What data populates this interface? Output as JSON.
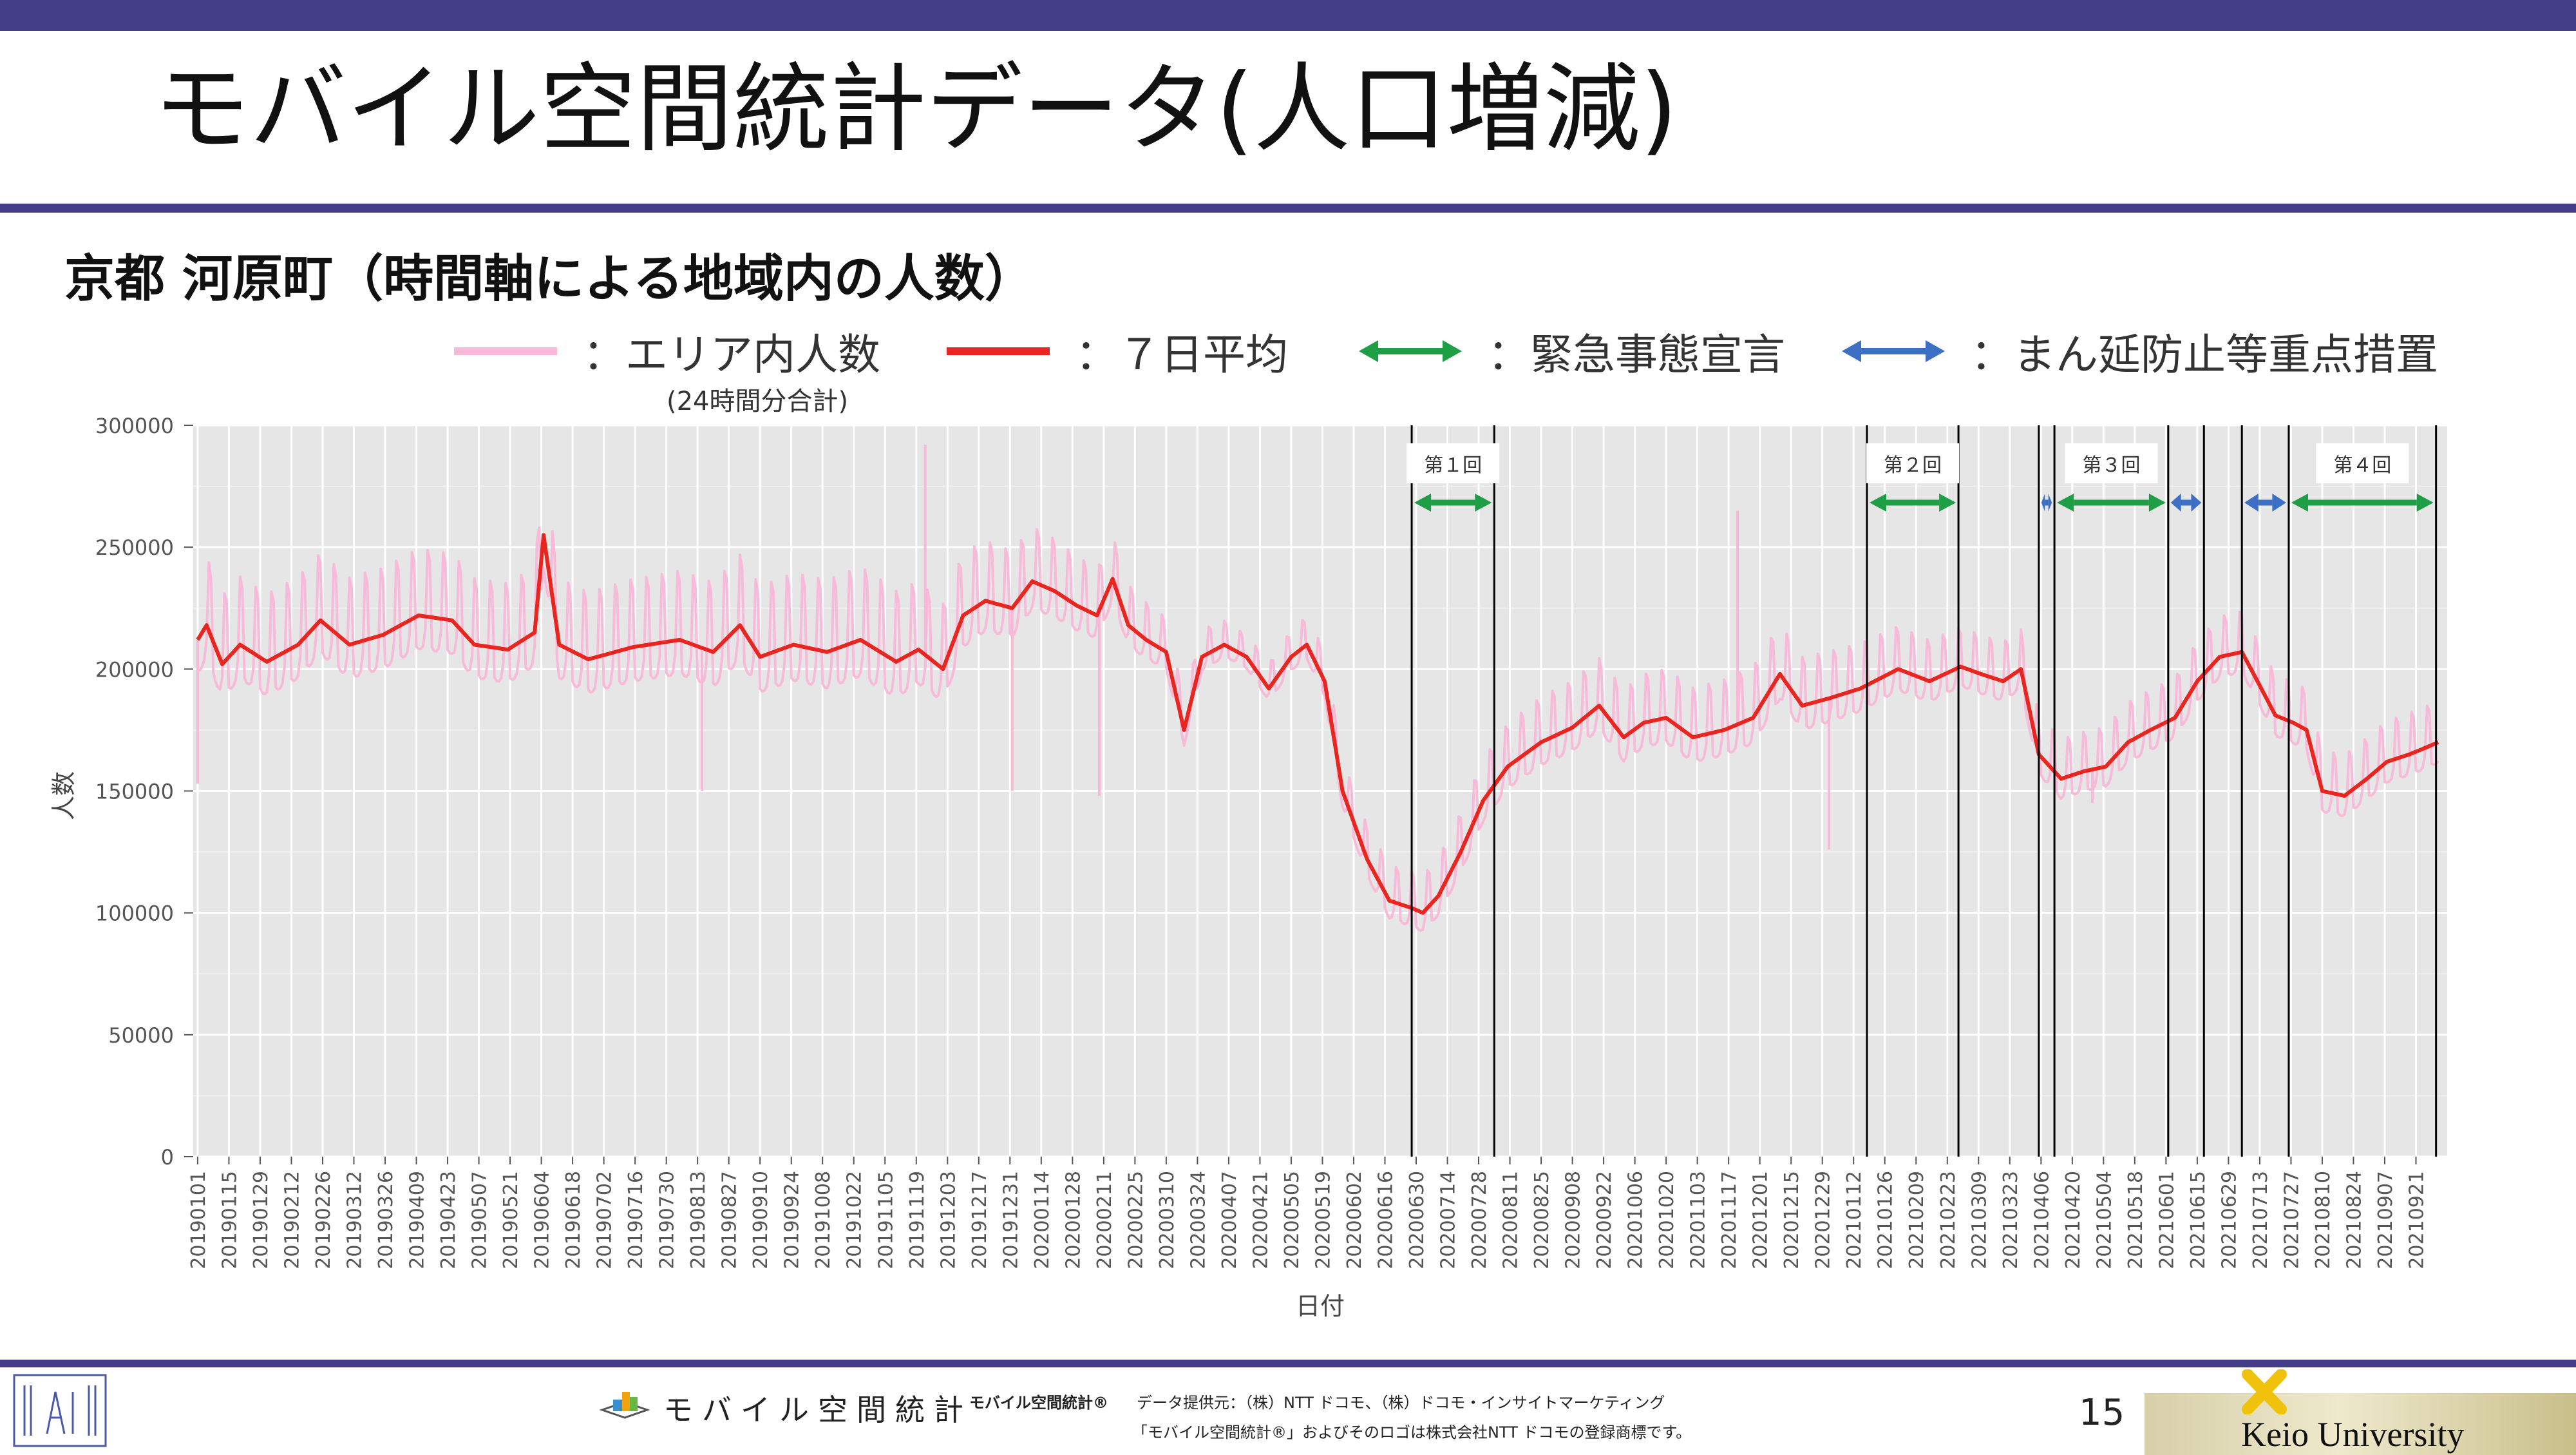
{
  "slide": {
    "title": "モバイル空間統計データ(人口増減)",
    "subtitle": "京都 河原町（時間軸による地域内の人数）",
    "page_number": "15"
  },
  "legend": [
    {
      "label": "：エリア内人数",
      "color": "#f8b8d8",
      "icon": "line"
    },
    {
      "label": "：７日平均",
      "color": "#e8251f",
      "icon": "line"
    },
    {
      "label": "：緊急事態宣言",
      "color": "#1e9e45",
      "icon": "double-arrow"
    },
    {
      "label": "：まん延防止等重点措置",
      "color": "#3d6fc4",
      "icon": "double-arrow"
    }
  ],
  "legend_note": "(24時間分合計)",
  "footer": {
    "brand_text": "モバイル空間統計",
    "small_brand": "モバイル空間統計®",
    "credit_line1": "データ提供元：（株）NTT ドコモ、（株）ドコモ・インサイトマーケティング",
    "credit_line2": "「モバイル空間統計®」およびそのロゴは株式会社NTT ドコモの登録商標です。",
    "university": "Keio University"
  },
  "colors": {
    "accent_bar": "#433d88",
    "panel_bg": "#e6e6e6",
    "raw_line": "#f8b8d8",
    "avg_line": "#e8251f",
    "emergency": "#1e9e45",
    "semi_emergency": "#3d6fc4"
  },
  "chart_data": {
    "type": "line",
    "title": "",
    "xlabel": "日付",
    "ylabel": "人数",
    "ylim": [
      0,
      300000
    ],
    "yticks": [
      0,
      50000,
      100000,
      150000,
      200000,
      250000,
      300000
    ],
    "ytick_labels": [
      "0",
      "50000",
      "100000",
      "150000",
      "200000",
      "250000",
      "300000"
    ],
    "xlim": [
      "2018-12-30",
      "2021-10-05"
    ],
    "xtick_labels": [
      "20190101",
      "20190115",
      "20190129",
      "20190212",
      "20190226",
      "20190312",
      "20190326",
      "20190409",
      "20190423",
      "20190507",
      "20190521",
      "20190604",
      "20190618",
      "20190702",
      "20190716",
      "20190730",
      "20190813",
      "20190827",
      "20190910",
      "20190924",
      "20191008",
      "20191022",
      "20191105",
      "20191119",
      "20191203",
      "20191217",
      "20191231",
      "20200114",
      "20200128",
      "20200211",
      "20200225",
      "20200310",
      "20200324",
      "20200407",
      "20200421",
      "20200505",
      "20200519",
      "20200602",
      "20200616",
      "20200630",
      "20200714",
      "20200728",
      "20200811",
      "20200825",
      "20200908",
      "20200922",
      "20201006",
      "20201020",
      "20201103",
      "20201117",
      "20201201",
      "20201215",
      "20201229",
      "20210112",
      "20210126",
      "20210209",
      "20210223",
      "20210309",
      "20210323",
      "20210406",
      "20210420",
      "20210504",
      "20210518",
      "20210601",
      "20210615",
      "20210629",
      "20210713",
      "20210727",
      "20210810",
      "20210824",
      "20210907",
      "20210921"
    ],
    "series": [
      {
        "name": "エリア内人数",
        "style": "daily",
        "weekly_amplitude": [
          [
            "2019-01-01",
            28000
          ],
          [
            "2019-06-01",
            27000
          ],
          [
            "2019-11-01",
            30000
          ],
          [
            "2020-02-01",
            20000
          ],
          [
            "2020-04-10",
            9000
          ],
          [
            "2020-06-10",
            14000
          ],
          [
            "2020-09-01",
            19000
          ],
          [
            "2020-12-01",
            21000
          ],
          [
            "2021-03-01",
            16000
          ],
          [
            "2021-09-30",
            17000
          ]
        ],
        "spikes": [
          [
            "2019-01-01",
            153000
          ],
          [
            "2019-11-23",
            292000
          ],
          [
            "2019-08-15",
            150000
          ],
          [
            "2020-01-01",
            150000
          ],
          [
            "2020-02-09",
            148000
          ],
          [
            "2021-01-01",
            126000
          ],
          [
            "2020-11-21",
            265000
          ],
          [
            "2021-04-29",
            145000
          ]
        ]
      },
      {
        "name": "７日平均",
        "style": "smooth",
        "points": [
          [
            "2019-01-01",
            212000
          ],
          [
            "2019-01-05",
            218000
          ],
          [
            "2019-01-12",
            202000
          ],
          [
            "2019-01-20",
            210000
          ],
          [
            "2019-02-01",
            203000
          ],
          [
            "2019-02-15",
            210000
          ],
          [
            "2019-02-25",
            220000
          ],
          [
            "2019-03-10",
            210000
          ],
          [
            "2019-03-25",
            214000
          ],
          [
            "2019-04-10",
            222000
          ],
          [
            "2019-04-25",
            220000
          ],
          [
            "2019-05-05",
            210000
          ],
          [
            "2019-05-20",
            208000
          ],
          [
            "2019-06-01",
            215000
          ],
          [
            "2019-06-05",
            255000
          ],
          [
            "2019-06-12",
            210000
          ],
          [
            "2019-06-25",
            204000
          ],
          [
            "2019-07-15",
            209000
          ],
          [
            "2019-08-05",
            212000
          ],
          [
            "2019-08-20",
            207000
          ],
          [
            "2019-09-01",
            218000
          ],
          [
            "2019-09-10",
            205000
          ],
          [
            "2019-09-25",
            210000
          ],
          [
            "2019-10-10",
            207000
          ],
          [
            "2019-10-25",
            212000
          ],
          [
            "2019-11-10",
            203000
          ],
          [
            "2019-11-20",
            208000
          ],
          [
            "2019-12-01",
            200000
          ],
          [
            "2019-12-10",
            222000
          ],
          [
            "2019-12-20",
            228000
          ],
          [
            "2020-01-01",
            225000
          ],
          [
            "2020-01-10",
            236000
          ],
          [
            "2020-01-20",
            232000
          ],
          [
            "2020-01-30",
            226000
          ],
          [
            "2020-02-08",
            222000
          ],
          [
            "2020-02-15",
            237000
          ],
          [
            "2020-02-22",
            218000
          ],
          [
            "2020-03-01",
            212000
          ],
          [
            "2020-03-10",
            207000
          ],
          [
            "2020-03-18",
            175000
          ],
          [
            "2020-03-26",
            205000
          ],
          [
            "2020-04-05",
            210000
          ],
          [
            "2020-04-15",
            205000
          ],
          [
            "2020-04-25",
            192000
          ],
          [
            "2020-05-05",
            205000
          ],
          [
            "2020-05-12",
            210000
          ],
          [
            "2020-05-20",
            195000
          ],
          [
            "2020-05-28",
            150000
          ],
          [
            "2020-06-08",
            122000
          ],
          [
            "2020-06-18",
            105000
          ],
          [
            "2020-06-28",
            102000
          ],
          [
            "2020-07-03",
            100000
          ],
          [
            "2020-07-10",
            107000
          ],
          [
            "2020-07-20",
            125000
          ],
          [
            "2020-07-30",
            146000
          ],
          [
            "2020-08-10",
            160000
          ],
          [
            "2020-08-25",
            170000
          ],
          [
            "2020-09-08",
            176000
          ],
          [
            "2020-09-20",
            185000
          ],
          [
            "2020-10-01",
            172000
          ],
          [
            "2020-10-10",
            178000
          ],
          [
            "2020-10-20",
            180000
          ],
          [
            "2020-11-01",
            172000
          ],
          [
            "2020-11-15",
            175000
          ],
          [
            "2020-11-28",
            180000
          ],
          [
            "2020-12-10",
            198000
          ],
          [
            "2020-12-20",
            185000
          ],
          [
            "2021-01-01",
            188000
          ],
          [
            "2021-01-15",
            192000
          ],
          [
            "2021-02-01",
            200000
          ],
          [
            "2021-02-15",
            195000
          ],
          [
            "2021-03-01",
            201000
          ],
          [
            "2021-03-10",
            198000
          ],
          [
            "2021-03-20",
            195000
          ],
          [
            "2021-03-28",
            200000
          ],
          [
            "2021-04-05",
            165000
          ],
          [
            "2021-04-15",
            155000
          ],
          [
            "2021-04-25",
            158000
          ],
          [
            "2021-05-05",
            160000
          ],
          [
            "2021-05-15",
            170000
          ],
          [
            "2021-05-25",
            175000
          ],
          [
            "2021-06-05",
            180000
          ],
          [
            "2021-06-15",
            195000
          ],
          [
            "2021-06-25",
            205000
          ],
          [
            "2021-07-05",
            207000
          ],
          [
            "2021-07-12",
            195000
          ],
          [
            "2021-07-20",
            181000
          ],
          [
            "2021-07-28",
            178000
          ],
          [
            "2021-08-03",
            175000
          ],
          [
            "2021-08-10",
            150000
          ],
          [
            "2021-08-20",
            148000
          ],
          [
            "2021-08-30",
            155000
          ],
          [
            "2021-09-08",
            162000
          ],
          [
            "2021-09-18",
            165000
          ],
          [
            "2021-09-26",
            168000
          ],
          [
            "2021-10-01",
            170000
          ]
        ]
      }
    ],
    "periods": [
      {
        "label": "第１回",
        "type": "緊急事態宣言",
        "start": "2020-06-28",
        "end": "2020-08-04"
      },
      {
        "label": "第２回",
        "type": "緊急事態宣言",
        "start": "2021-01-18",
        "end": "2021-02-28"
      },
      {
        "label": "",
        "type": "まん延防止等重点措置",
        "start": "2021-04-05",
        "end": "2021-04-12"
      },
      {
        "label": "第３回",
        "type": "緊急事態宣言",
        "start": "2021-04-12",
        "end": "2021-06-02"
      },
      {
        "label": "",
        "type": "まん延防止等重点措置",
        "start": "2021-06-02",
        "end": "2021-06-18"
      },
      {
        "label": "",
        "type": "まん延防止等重点措置",
        "start": "2021-07-05",
        "end": "2021-07-26"
      },
      {
        "label": "第４回",
        "type": "緊急事態宣言",
        "start": "2021-07-26",
        "end": "2021-09-30"
      }
    ]
  }
}
